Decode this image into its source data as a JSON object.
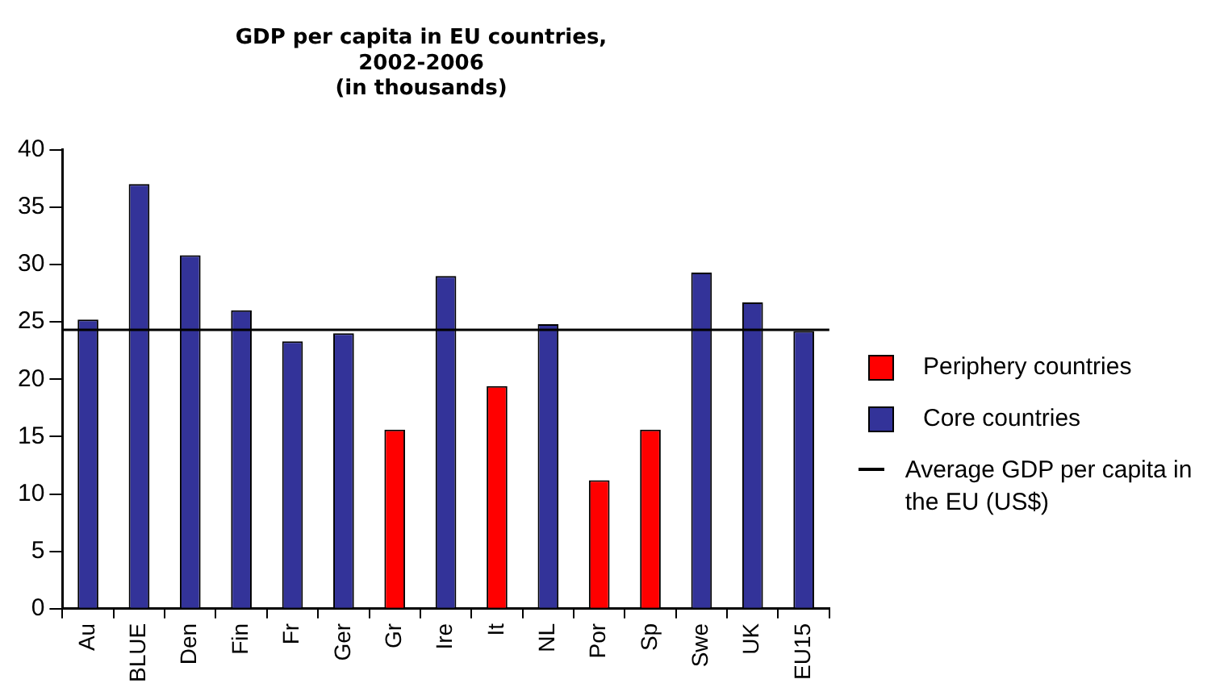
{
  "chart_data": {
    "type": "bar",
    "title": [
      "GDP per capita in EU countries,",
      "2002-2006",
      "(in thousands)"
    ],
    "categories": [
      "Au",
      "BLUE",
      "Den",
      "Fin",
      "Fr",
      "Ger",
      "Gr",
      "Ire",
      "It",
      "NL",
      "Por",
      "Sp",
      "Swe",
      "UK",
      "EU15"
    ],
    "series": [
      {
        "name": "Periphery countries",
        "color": "#ff0000",
        "values": [
          null,
          null,
          null,
          null,
          null,
          null,
          15.6,
          null,
          19.4,
          null,
          11.2,
          15.6,
          null,
          null,
          null
        ]
      },
      {
        "name": "Core countries",
        "color": "#333399",
        "values": [
          25.2,
          37,
          30.8,
          26,
          23.3,
          24,
          null,
          29,
          null,
          24.8,
          null,
          null,
          29.3,
          26.7,
          24.2
        ]
      }
    ],
    "ref_lines": [
      {
        "axis": "y",
        "value": 24.3,
        "label": "Average GDP per capita in the EU (US$)",
        "color": "#000000"
      }
    ],
    "ylim": [
      0,
      40
    ],
    "yticks": [
      0,
      5,
      10,
      15,
      20,
      25,
      30,
      35,
      40
    ],
    "grid": false,
    "legend": "right"
  }
}
